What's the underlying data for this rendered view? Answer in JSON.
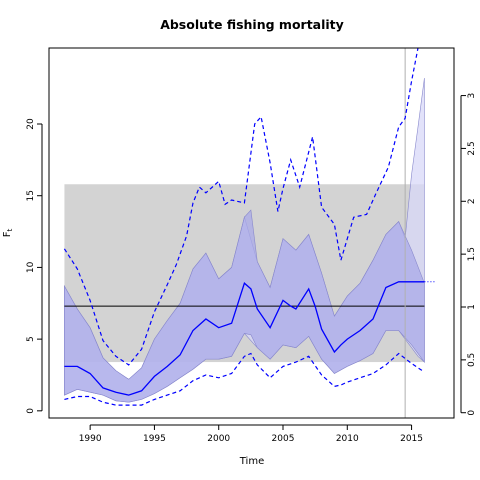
{
  "chart_data": {
    "type": "line",
    "title": "Absolute fishing mortality",
    "xlabel": "Time",
    "ylabel_left": "Ft",
    "xlim": [
      1986.8,
      2018.3
    ],
    "ylim_left": [
      -0.5,
      25.3
    ],
    "ylim_right": [
      -0.05,
      3.45
    ],
    "x_ticks": [
      1990,
      1995,
      2000,
      2005,
      2010,
      2015
    ],
    "y_ticks_left": [
      0,
      5,
      10,
      15,
      20
    ],
    "y_ticks_right": [
      0,
      0.5,
      1,
      1.5,
      2,
      2.5,
      3
    ],
    "y_tick_labels_right": [
      "0",
      "0.5",
      "1",
      "1.5",
      "2",
      "2.5",
      "3"
    ],
    "reference_band": {
      "x_range": [
        1988,
        2016
      ],
      "y_range": [
        3.4,
        15.8
      ],
      "color": "#d3d3d3"
    },
    "reference_line": {
      "y": 7.3,
      "x_range": [
        1988,
        2016
      ],
      "color": "#000000"
    },
    "vertical_line": {
      "x": 2014.5,
      "color": "#b0b0b0"
    },
    "series": [
      {
        "style": "solid",
        "color": "#0000ff",
        "x": [
          1988,
          1989,
          1990,
          1991,
          1992,
          1993,
          1994,
          1995,
          1996,
          1997,
          1998,
          1999,
          2000,
          2001,
          2002,
          2002.5,
          2003,
          2004,
          2005,
          2005.6,
          2006,
          2007,
          2007.5,
          2008,
          2009,
          2009.5,
          2010,
          2011,
          2012,
          2013,
          2014,
          2015,
          2016
        ],
        "y": [
          3.1,
          3.1,
          2.6,
          1.6,
          1.3,
          1.1,
          1.4,
          2.4,
          3.1,
          3.9,
          5.6,
          6.4,
          5.8,
          6.1,
          8.9,
          8.5,
          7.1,
          5.8,
          7.7,
          7.3,
          7.1,
          8.5,
          7.3,
          5.7,
          4.1,
          4.6,
          5.0,
          5.6,
          6.4,
          8.6,
          9.0,
          9.0,
          9.0
        ]
      },
      {
        "style": "dashed",
        "color": "#0000ff",
        "x": [
          1988,
          1989,
          1990,
          1991,
          1992,
          1993,
          1994,
          1995,
          1996,
          1996.7,
          1997.5,
          1998,
          1998.5,
          1999,
          2000,
          2000.5,
          2001,
          2002,
          2002.8,
          2003.3,
          2004,
          2004.6,
          2005,
          2005.6,
          2006.3,
          2007.3,
          2008,
          2009,
          2009.5,
          2010.5,
          2011.5,
          2012.2,
          2013.2,
          2014,
          2014.5,
          2015,
          2015.5
        ],
        "y": [
          11.3,
          9.9,
          7.7,
          4.9,
          3.8,
          3.2,
          4.3,
          6.9,
          8.8,
          10.2,
          12.2,
          14.5,
          15.6,
          15.2,
          16.0,
          14.4,
          14.7,
          14.5,
          20.0,
          20.5,
          17.3,
          13.9,
          15.5,
          17.5,
          15.6,
          19.1,
          14.2,
          13.0,
          10.5,
          13.5,
          13.7,
          15.1,
          17.0,
          19.8,
          20.4,
          23.0,
          25.3
        ]
      },
      {
        "style": "dashed",
        "color": "#0000ff",
        "x": [
          1988,
          1989,
          1990,
          1991,
          1992,
          1993,
          1994,
          1995,
          1996,
          1997,
          1998,
          1999,
          2000,
          2001,
          2002,
          2002.5,
          2003,
          2004,
          2005,
          2006,
          2007,
          2008,
          2009,
          2009.5,
          2010,
          2011,
          2012,
          2013,
          2014,
          2015,
          2016
        ],
        "y": [
          0.8,
          1.0,
          1.0,
          0.6,
          0.4,
          0.4,
          0.4,
          0.8,
          1.1,
          1.4,
          2.1,
          2.5,
          2.3,
          2.6,
          3.8,
          4.0,
          3.2,
          2.3,
          3.1,
          3.4,
          3.8,
          2.5,
          1.7,
          1.8,
          2.0,
          2.3,
          2.6,
          3.2,
          4.0,
          3.3,
          2.7
        ]
      },
      {
        "style": "band",
        "color": "#aaaae8",
        "x": [
          1988,
          1989,
          1990,
          1991,
          1992,
          1993,
          1994,
          1995,
          1996,
          1997,
          1998,
          1999,
          2000,
          2001,
          2002,
          2002.5,
          2003,
          2004,
          2005,
          2006,
          2007,
          2008,
          2009,
          2010,
          2011,
          2012,
          2013,
          2014,
          2015,
          2016
        ],
        "upper": [
          8.7,
          7.1,
          5.8,
          3.7,
          2.8,
          2.2,
          3.0,
          5.0,
          6.3,
          7.5,
          9.9,
          11.0,
          9.2,
          10.0,
          13.5,
          14.0,
          10.4,
          8.6,
          12.0,
          11.2,
          12.3,
          9.6,
          6.6,
          8.0,
          8.9,
          10.5,
          12.3,
          13.2,
          11.2,
          8.9
        ],
        "lower": [
          1.1,
          1.5,
          1.3,
          1.1,
          0.7,
          0.6,
          0.8,
          1.2,
          1.7,
          2.3,
          2.9,
          3.6,
          3.6,
          3.8,
          5.4,
          5.3,
          4.4,
          3.6,
          4.6,
          4.4,
          5.2,
          3.6,
          2.6,
          3.1,
          3.5,
          4.0,
          5.6,
          5.6,
          4.6,
          3.4
        ]
      },
      {
        "style": "band",
        "color": "#d8d8f8",
        "x": [
          1988,
          1989,
          1990,
          1991,
          1992,
          1993,
          1994,
          1995,
          1996,
          1997,
          1998,
          1999,
          2000,
          2001,
          2002,
          2003,
          2004,
          2005,
          2006,
          2007,
          2008,
          2009,
          2010,
          2011,
          2012,
          2013,
          2014,
          2014.5,
          2015,
          2015.5,
          2016
        ],
        "upper": [
          8.7,
          7.1,
          5.8,
          3.7,
          2.8,
          2.2,
          3.0,
          5.0,
          6.3,
          7.5,
          9.9,
          11.0,
          9.2,
          10.0,
          13.5,
          10.4,
          8.6,
          12.0,
          11.2,
          12.3,
          9.6,
          6.6,
          8.0,
          8.9,
          10.5,
          12.3,
          13.2,
          12.0,
          16.5,
          19.8,
          23.2
        ],
        "lower": [
          1.1,
          1.5,
          1.3,
          1.1,
          0.7,
          0.6,
          0.8,
          1.2,
          1.7,
          2.3,
          2.9,
          3.6,
          3.6,
          3.8,
          5.4,
          4.4,
          3.6,
          4.6,
          4.4,
          5.2,
          3.6,
          2.6,
          3.1,
          3.5,
          4.0,
          5.6,
          5.6,
          5.0,
          4.4,
          3.8,
          3.4
        ]
      }
    ]
  }
}
